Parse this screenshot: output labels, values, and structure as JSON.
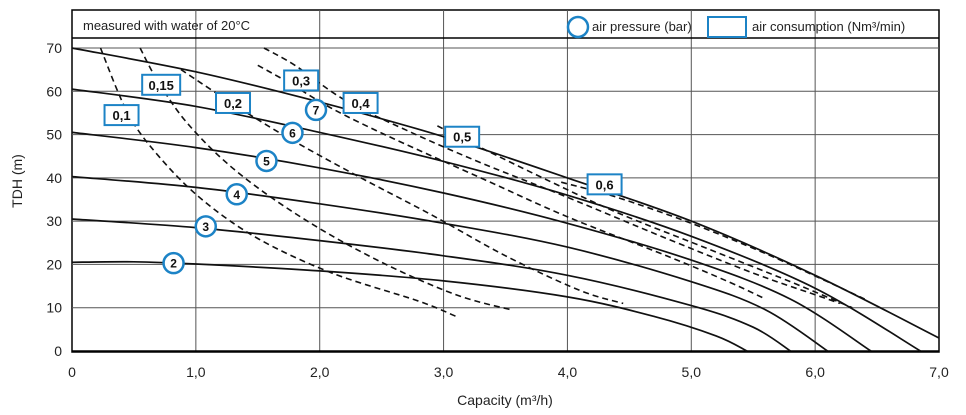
{
  "chart_data": {
    "type": "line",
    "title": "",
    "note": "measured with water of 20°C",
    "xlabel": "Capacity (m³/h)",
    "ylabel": "TDH (m)",
    "xlim": [
      0,
      7
    ],
    "ylim": [
      0,
      70
    ],
    "x_ticks": [
      "0",
      "1,0",
      "2,0",
      "3,0",
      "4,0",
      "5,0",
      "6,0",
      "7,0"
    ],
    "y_ticks": [
      "0",
      "10",
      "20",
      "30",
      "40",
      "50",
      "60",
      "70"
    ],
    "grid": true,
    "legend": [
      {
        "symbol": "circle",
        "label": "air pressure (bar)"
      },
      {
        "symbol": "box",
        "label": "air consumption (Nm³/min)"
      }
    ],
    "pressure_series": [
      {
        "name": "2",
        "label_at": [
          0.82,
          20.3
        ],
        "points": [
          [
            0,
            20.5
          ],
          [
            0.5,
            20.6
          ],
          [
            1,
            20.1
          ],
          [
            2,
            18.5
          ],
          [
            3,
            16.2
          ],
          [
            4,
            12.5
          ],
          [
            4.7,
            8
          ],
          [
            5.2,
            3.5
          ],
          [
            5.45,
            0
          ]
        ]
      },
      {
        "name": "3",
        "label_at": [
          1.08,
          28.8
        ],
        "points": [
          [
            0,
            30.5
          ],
          [
            1,
            28.5
          ],
          [
            2,
            25.5
          ],
          [
            3,
            22
          ],
          [
            4,
            17.5
          ],
          [
            5,
            10.5
          ],
          [
            5.5,
            5.5
          ],
          [
            5.8,
            0
          ]
        ]
      },
      {
        "name": "4",
        "label_at": [
          1.33,
          36.2
        ],
        "points": [
          [
            0,
            40.3
          ],
          [
            1,
            37.8
          ],
          [
            2,
            34
          ],
          [
            3,
            29.5
          ],
          [
            4,
            24
          ],
          [
            5,
            16
          ],
          [
            5.6,
            9.5
          ],
          [
            6.1,
            0
          ]
        ]
      },
      {
        "name": "5",
        "label_at": [
          1.57,
          43.9
        ],
        "points": [
          [
            0,
            50.5
          ],
          [
            1,
            47
          ],
          [
            2,
            42.3
          ],
          [
            3,
            36.5
          ],
          [
            4,
            29.5
          ],
          [
            5,
            21
          ],
          [
            5.8,
            12
          ],
          [
            6.45,
            0
          ]
        ]
      },
      {
        "name": "6",
        "label_at": [
          1.78,
          50.4
        ],
        "points": [
          [
            0,
            60.5
          ],
          [
            1,
            56.5
          ],
          [
            2,
            50.5
          ],
          [
            3,
            43.8
          ],
          [
            4,
            36
          ],
          [
            5,
            26.5
          ],
          [
            6,
            14.5
          ],
          [
            6.85,
            0
          ]
        ]
      },
      {
        "name": "7",
        "label_at": [
          1.97,
          55.7
        ],
        "points": [
          [
            0,
            70
          ],
          [
            1,
            64.5
          ],
          [
            2,
            57.5
          ],
          [
            3,
            49.5
          ],
          [
            4,
            40
          ],
          [
            5,
            30
          ],
          [
            6,
            17.5
          ],
          [
            7,
            3
          ]
        ]
      }
    ],
    "air_consumption_series": [
      {
        "name": "0,1",
        "label_at": [
          0.4,
          54.5
        ],
        "points": [
          [
            0.23,
            70
          ],
          [
            0.45,
            55
          ],
          [
            0.7,
            45
          ],
          [
            1.05,
            35
          ],
          [
            1.5,
            26
          ],
          [
            2.1,
            18
          ],
          [
            2.8,
            11.5
          ],
          [
            3.1,
            8
          ]
        ]
      },
      {
        "name": "0,15",
        "label_at": [
          0.72,
          61.5
        ],
        "points": [
          [
            0.55,
            70
          ],
          [
            0.7,
            62
          ],
          [
            0.95,
            52
          ],
          [
            1.35,
            41
          ],
          [
            1.9,
            30
          ],
          [
            2.5,
            20.5
          ],
          [
            3.1,
            13
          ],
          [
            3.55,
            9.5
          ]
        ]
      },
      {
        "name": "0,2",
        "label_at": [
          1.3,
          57.3
        ],
        "points": [
          [
            0.88,
            65
          ],
          [
            1.25,
            58
          ],
          [
            1.7,
            50
          ],
          [
            2.3,
            40.5
          ],
          [
            2.9,
            31.5
          ],
          [
            3.5,
            22
          ],
          [
            4.1,
            14
          ],
          [
            4.45,
            11
          ]
        ]
      },
      {
        "name": "0,3",
        "label_at": [
          1.85,
          62.5
        ],
        "points": [
          [
            1.5,
            66
          ],
          [
            1.75,
            62
          ],
          [
            2.1,
            56
          ],
          [
            2.6,
            49
          ],
          [
            3.3,
            40
          ],
          [
            4.0,
            31
          ],
          [
            4.8,
            22
          ],
          [
            5.3,
            16
          ],
          [
            5.6,
            12
          ]
        ]
      },
      {
        "name": "0,4",
        "label_at": [
          2.33,
          57.3
        ],
        "points": [
          [
            1.55,
            70
          ],
          [
            1.8,
            66
          ],
          [
            2.2,
            58
          ],
          [
            2.7,
            51
          ],
          [
            3.3,
            43.5
          ],
          [
            4.0,
            35.5
          ],
          [
            4.8,
            26
          ],
          [
            5.5,
            18
          ],
          [
            6.0,
            13
          ],
          [
            6.2,
            11
          ]
        ]
      },
      {
        "name": "0,5",
        "label_at": [
          3.15,
          49.5
        ],
        "points": [
          [
            2.95,
            52
          ],
          [
            3.3,
            47
          ],
          [
            3.8,
            40
          ],
          [
            4.4,
            32
          ],
          [
            5.1,
            24
          ],
          [
            5.8,
            16
          ],
          [
            6.3,
            10
          ]
        ]
      },
      {
        "name": "0,6",
        "label_at": [
          4.3,
          38.5
        ],
        "points": [
          [
            3.95,
            39
          ],
          [
            4.4,
            35.5
          ],
          [
            5.0,
            29.5
          ],
          [
            5.6,
            22.5
          ],
          [
            6.1,
            16
          ],
          [
            6.4,
            12
          ]
        ]
      }
    ]
  }
}
